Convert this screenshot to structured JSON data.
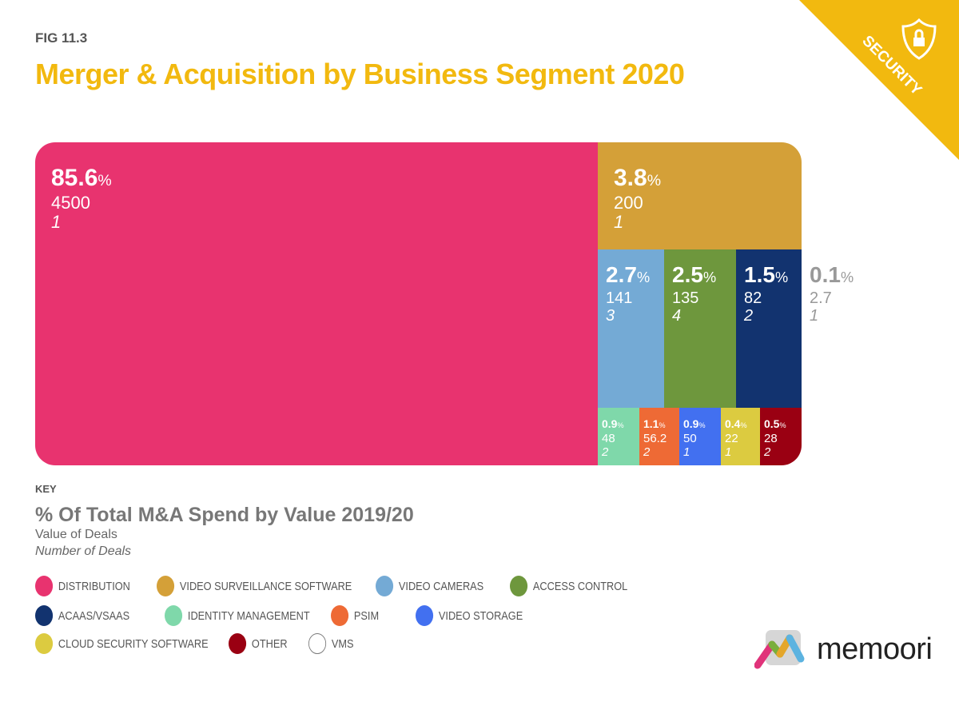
{
  "figure_label": "FIG 11.3",
  "badge": {
    "text": "SECURITY",
    "icon": "shield-lock-icon",
    "color": "#F2B90F"
  },
  "chart_data": {
    "type": "treemap",
    "title": "Merger & Acquisition by Business Segment 2020",
    "items": [
      {
        "name": "DISTRIBUTION",
        "percent": "85.6",
        "value": "4500",
        "deals": "1",
        "color": "#E8336F"
      },
      {
        "name": "VIDEO SURVEILLANCE SOFTWARE",
        "percent": "3.8",
        "value": "200",
        "deals": "1",
        "color": "#D4A038"
      },
      {
        "name": "VIDEO CAMERAS",
        "percent": "2.7",
        "value": "141",
        "deals": "3",
        "color": "#74AAD5"
      },
      {
        "name": "ACCESS CONTROL",
        "percent": "2.5",
        "value": "135",
        "deals": "4",
        "color": "#6E973D"
      },
      {
        "name": "ACAAS/VSAAS",
        "percent": "1.5",
        "value": "82",
        "deals": "2",
        "color": "#12336F"
      },
      {
        "name": "IDENTITY MANAGEMENT",
        "percent": "0.9",
        "value": "48",
        "deals": "2",
        "color": "#7FD8AA"
      },
      {
        "name": "PSIM",
        "percent": "1.1",
        "value": "56.2",
        "deals": "2",
        "color": "#EE6A35"
      },
      {
        "name": "VIDEO STORAGE",
        "percent": "0.9",
        "value": "50",
        "deals": "1",
        "color": "#4270F0"
      },
      {
        "name": "CLOUD SECURITY SOFTWARE",
        "percent": "0.4",
        "value": "22",
        "deals": "1",
        "color": "#DCCB40"
      },
      {
        "name": "OTHER",
        "percent": "0.5",
        "value": "28",
        "deals": "2",
        "color": "#9A0012"
      },
      {
        "name": "VMS",
        "percent": "0.1",
        "value": "2.7",
        "deals": "1",
        "color": "#FFFFFF"
      }
    ],
    "percent_sign": "%"
  },
  "key": {
    "label": "KEY",
    "title": "% Of Total M&A Spend by Value 2019/20",
    "value_label": "Value of Deals",
    "number_label": "Number of Deals"
  },
  "logo": {
    "text": "memoori"
  }
}
